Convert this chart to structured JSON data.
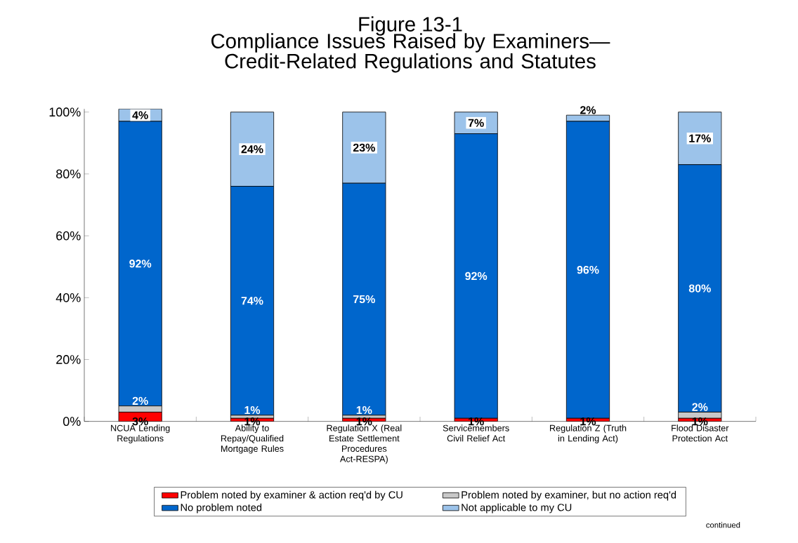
{
  "chart_data": {
    "type": "bar",
    "stacked": true,
    "title": "Figure 13-1",
    "subtitle": "Compliance Issues Raised by Examiners—Credit-Related Regulations and Statutes",
    "categories": [
      "NCUA Lending Regulations",
      "Ability to Repay/Qualified Mortgage Rules",
      "Regulation X (Real Estate Settlement Procedures Act-RESPA)",
      "Servicemembers Civil Relief Act",
      "Regulation Z (Truth in Lending Act)",
      "Flood Disaster Protection Act"
    ],
    "series": [
      {
        "name": "Problem noted by examiner & action req'd by CU",
        "color": "#ff0000",
        "values": [
          3,
          1,
          1,
          1,
          1,
          1
        ],
        "value_labels": [
          "3%",
          "1%",
          "1%",
          "1%",
          "1%",
          "1%"
        ]
      },
      {
        "name": "Problem noted by examiner, but no action req'd",
        "color": "#c8c8c8",
        "values": [
          2,
          1,
          1,
          0,
          0,
          2
        ],
        "value_labels": [
          "2%",
          "1%",
          "1%",
          null,
          null,
          "2%"
        ]
      },
      {
        "name": "No problem noted",
        "color": "#0066cc",
        "values": [
          92,
          74,
          75,
          92,
          96,
          80
        ],
        "value_labels": [
          "92%",
          "74%",
          "75%",
          "92%",
          "96%",
          "80%"
        ]
      },
      {
        "name": "Not applicable to my CU",
        "color": "#9cc3ea",
        "values": [
          4,
          24,
          23,
          7,
          2,
          17
        ],
        "value_labels": [
          "4%",
          "24%",
          "23%",
          "7%",
          "2%",
          "17%"
        ]
      }
    ],
    "ylim": [
      0,
      101
    ],
    "yticks": [
      {
        "value": 0,
        "label": "0%"
      },
      {
        "value": 20,
        "label": "20%"
      },
      {
        "value": 40,
        "label": "40%"
      },
      {
        "value": 60,
        "label": "60%"
      },
      {
        "value": 80,
        "label": "80%"
      },
      {
        "value": 100,
        "label": "100%"
      }
    ],
    "legend": "bottom",
    "grid": false,
    "annotations": [
      "continued"
    ]
  }
}
